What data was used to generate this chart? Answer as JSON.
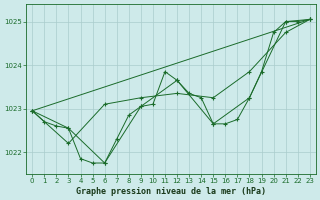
{
  "title": "Graphe pression niveau de la mer (hPa)",
  "background_color": "#ceeaea",
  "grid_color": "#aacccc",
  "line_color": "#1a6b2a",
  "xlim": [
    -0.5,
    23.5
  ],
  "ylim": [
    1021.5,
    1025.4
  ],
  "yticks": [
    1022,
    1023,
    1024,
    1025
  ],
  "xticks": [
    0,
    1,
    2,
    3,
    4,
    5,
    6,
    7,
    8,
    9,
    10,
    11,
    12,
    13,
    14,
    15,
    16,
    17,
    18,
    19,
    20,
    21,
    22,
    23
  ],
  "series": [
    {
      "x": [
        0,
        1,
        2,
        3,
        4,
        5,
        6,
        7,
        8,
        9,
        10,
        11,
        12,
        13,
        14,
        15,
        16,
        17,
        18,
        19,
        20,
        21,
        22,
        23
      ],
      "y": [
        1022.95,
        1022.7,
        1022.6,
        1022.55,
        1021.85,
        1021.75,
        1021.75,
        1022.3,
        1022.85,
        1023.05,
        1023.1,
        1023.85,
        1023.65,
        1023.35,
        1023.25,
        1022.65,
        1022.65,
        1022.75,
        1023.25,
        1023.85,
        1024.75,
        1025.0,
        1025.0,
        1025.05
      ]
    },
    {
      "x": [
        0,
        3,
        6,
        9,
        12,
        15,
        18,
        21,
        23
      ],
      "y": [
        1022.95,
        1022.55,
        1021.75,
        1023.05,
        1023.65,
        1022.65,
        1023.25,
        1025.0,
        1025.05
      ]
    },
    {
      "x": [
        0,
        3,
        6,
        9,
        12,
        15,
        18,
        21,
        23
      ],
      "y": [
        1022.95,
        1022.2,
        1023.1,
        1023.25,
        1023.35,
        1023.25,
        1023.85,
        1024.75,
        1025.05
      ]
    },
    {
      "x": [
        0,
        23
      ],
      "y": [
        1022.95,
        1025.05
      ]
    }
  ]
}
